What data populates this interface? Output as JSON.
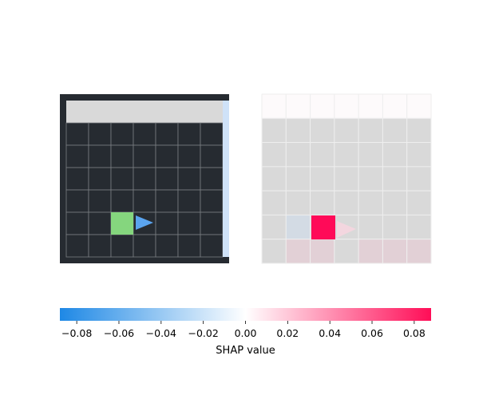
{
  "chart_data": {
    "type": "heatmap",
    "title": "",
    "panels": [
      {
        "name": "observation",
        "grid_rows": 7,
        "grid_cols": 7,
        "colors": {
          "frame": "#262b31",
          "cell": "#262b31",
          "grid_line": "#7a7e82",
          "top_strip": "#d9d9d9",
          "side_strip": "#cfe2f8",
          "agent_square": "#85d67e",
          "agent_arrow": "#5aa4ef"
        }
      },
      {
        "name": "shap-overlay",
        "grid_rows": 7,
        "grid_cols": 7,
        "base_color": "#d9d9d9",
        "top_row_color": "#fdfafb",
        "highlight_color": "#ff0a58",
        "highlight_cell": [
          5,
          2
        ],
        "arrow_color": "#f3d6df"
      }
    ],
    "colorbar": {
      "label": "SHAP value",
      "vmin": -0.088,
      "vmax": 0.088,
      "ticks": [
        -0.08,
        -0.06,
        -0.04,
        -0.02,
        0.0,
        0.02,
        0.04,
        0.06,
        0.08
      ],
      "tick_labels": [
        "−0.08",
        "−0.06",
        "−0.04",
        "−0.02",
        "0.00",
        "0.02",
        "0.04",
        "0.06",
        "0.08"
      ],
      "colors": [
        "#1e88e5",
        "#ffffff",
        "#ff0d57"
      ]
    }
  }
}
